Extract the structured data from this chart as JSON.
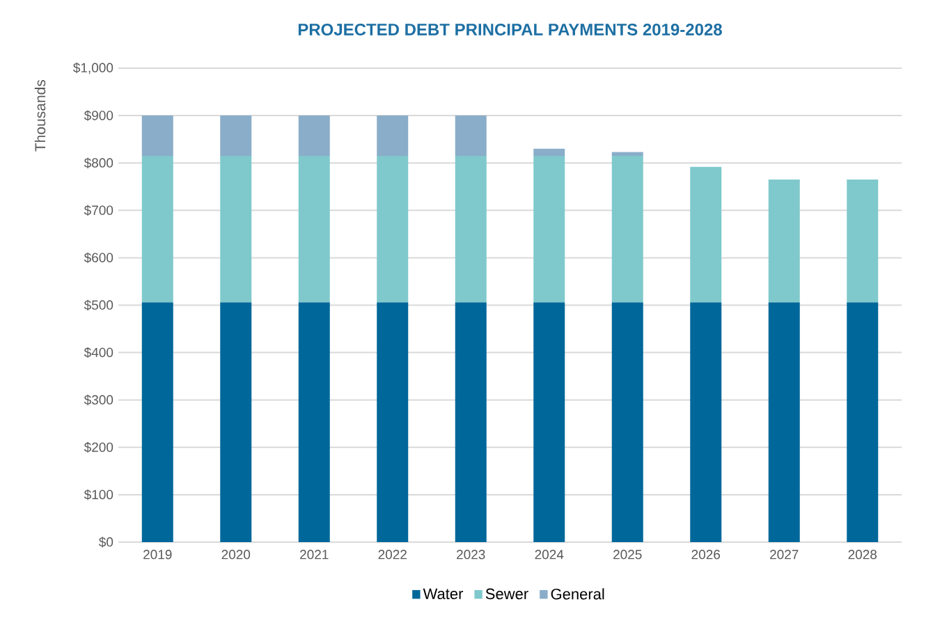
{
  "chart_data": {
    "type": "bar",
    "title": "PROJECTED DEBT PRINCIPAL PAYMENTS 2019-2028",
    "ylabel": "Thousands",
    "categories": [
      "2019",
      "2020",
      "2021",
      "2022",
      "2023",
      "2024",
      "2025",
      "2026",
      "2027",
      "2028"
    ],
    "stacked": true,
    "series": [
      {
        "name": "Water",
        "color": "#00679A",
        "values": [
          506,
          506,
          506,
          506,
          506,
          506,
          506,
          506,
          506,
          506
        ]
      },
      {
        "name": "Sewer",
        "color": "#7FC9CC",
        "values": [
          309,
          309,
          309,
          309,
          309,
          309,
          309,
          286,
          259,
          259
        ]
      },
      {
        "name": "General",
        "color": "#8AADC9",
        "values": [
          85,
          85,
          85,
          85,
          85,
          15,
          8,
          null,
          null,
          null
        ]
      }
    ],
    "ylim": [
      0,
      1000
    ],
    "yticks": [
      {
        "value": 0,
        "label": "$0"
      },
      {
        "value": 100,
        "label": "$100"
      },
      {
        "value": 200,
        "label": "$200"
      },
      {
        "value": 300,
        "label": "$300"
      },
      {
        "value": 400,
        "label": "$400"
      },
      {
        "value": 500,
        "label": "$500"
      },
      {
        "value": 600,
        "label": "$600"
      },
      {
        "value": 700,
        "label": "$700"
      },
      {
        "value": 800,
        "label": "$800"
      },
      {
        "value": 900,
        "label": "$900"
      },
      {
        "value": 1000,
        "label": "$1,000"
      }
    ],
    "grid": "y",
    "legend": "bottom"
  }
}
